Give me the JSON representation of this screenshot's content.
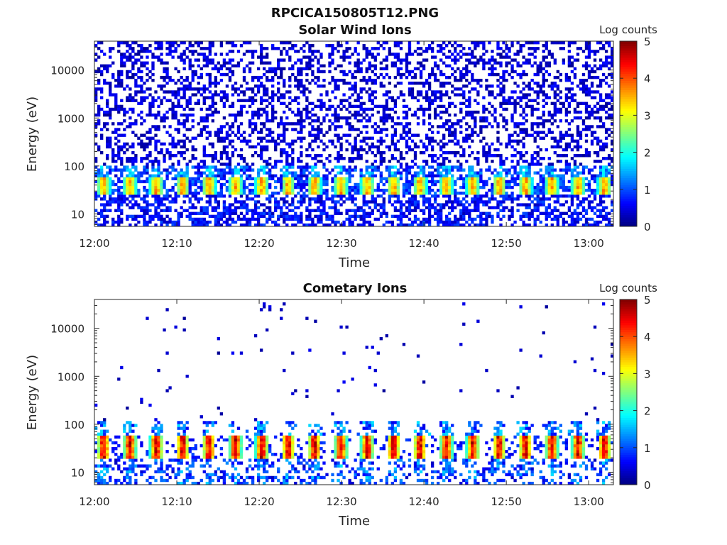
{
  "figure": {
    "title": "RPCICA150805T12.PNG"
  },
  "colorscale": {
    "name": "jet",
    "stops": [
      "#00007f",
      "#0000ff",
      "#0080ff",
      "#00ffff",
      "#80ff80",
      "#ffff00",
      "#ff8000",
      "#ff0000",
      "#7f0000"
    ]
  },
  "chart_data": [
    {
      "type": "heatmap",
      "title": "Solar Wind Ions",
      "xlabel": "Time",
      "ylabel": "Energy (eV)",
      "x_ticks": [
        "12:00",
        "12:10",
        "12:20",
        "12:30",
        "12:40",
        "12:50",
        "13:00"
      ],
      "x_tick_minutes": [
        0,
        10,
        20,
        30,
        40,
        50,
        60
      ],
      "xlim_minutes": [
        0,
        63
      ],
      "y_scale": "log",
      "ylim": [
        5.5,
        40000
      ],
      "y_ticks": [
        10,
        100,
        1000,
        10000
      ],
      "y_tick_labels": [
        "10",
        "100",
        "1000",
        "10000"
      ],
      "colorbar": {
        "label": "Log counts",
        "range": [
          0,
          5
        ],
        "ticks": [
          "0",
          "1",
          "2",
          "3",
          "4",
          "5"
        ]
      },
      "description_values": {
        "dominant_energy_band_eV": [
          25,
          60
        ],
        "peak_log_counts": 3.0,
        "background_log_counts": 0.3,
        "burst_period_minutes": 3.2
      }
    },
    {
      "type": "heatmap",
      "title": "Cometary Ions",
      "xlabel": "Time",
      "ylabel": "Energy (eV)",
      "x_ticks": [
        "12:00",
        "12:10",
        "12:20",
        "12:30",
        "12:40",
        "12:50",
        "13:00"
      ],
      "x_tick_minutes": [
        0,
        10,
        20,
        30,
        40,
        50,
        60
      ],
      "xlim_minutes": [
        0,
        63
      ],
      "y_scale": "log",
      "ylim": [
        5.5,
        40000
      ],
      "y_ticks": [
        10,
        100,
        1000,
        10000
      ],
      "y_tick_labels": [
        "10",
        "100",
        "1000",
        "10000"
      ],
      "colorbar": {
        "label": "Log counts",
        "range": [
          0,
          5
        ],
        "ticks": [
          "0",
          "1",
          "2",
          "3",
          "4",
          "5"
        ]
      },
      "description_values": {
        "dominant_energy_band_eV": [
          20,
          60
        ],
        "peak_log_counts": 4.0,
        "background_log_counts": 0.2,
        "burst_period_minutes": 3.2
      }
    }
  ]
}
